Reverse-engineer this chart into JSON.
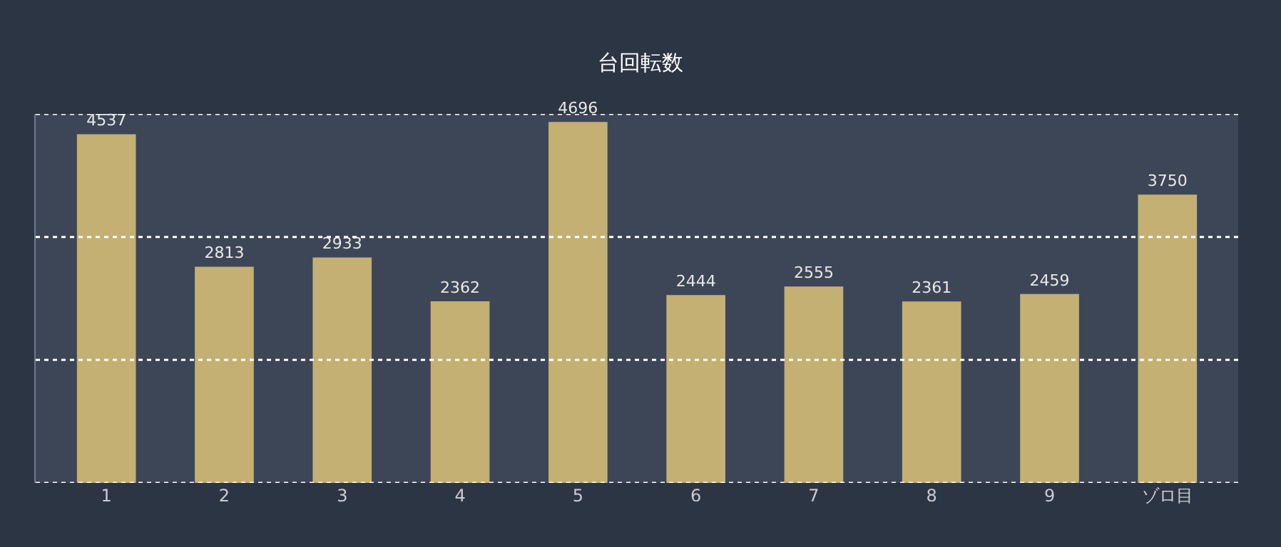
{
  "chart_data": {
    "type": "bar",
    "title": "台回転数",
    "categories": [
      "1",
      "2",
      "3",
      "4",
      "5",
      "6",
      "7",
      "8",
      "9",
      "ゾロ目"
    ],
    "values": [
      4537,
      2813,
      2933,
      2362,
      4696,
      2444,
      2555,
      2361,
      2459,
      3750
    ],
    "color": "#c4b073",
    "data_labels": true,
    "ylim": [
      0,
      4800
    ],
    "yticks": [
      {
        "value": 0,
        "label": null
      },
      {
        "value": 1600,
        "label": null
      },
      {
        "value": 3200,
        "label": null
      },
      {
        "value": 4800,
        "label": null
      }
    ],
    "grid": "y",
    "tick_labels": "x"
  }
}
